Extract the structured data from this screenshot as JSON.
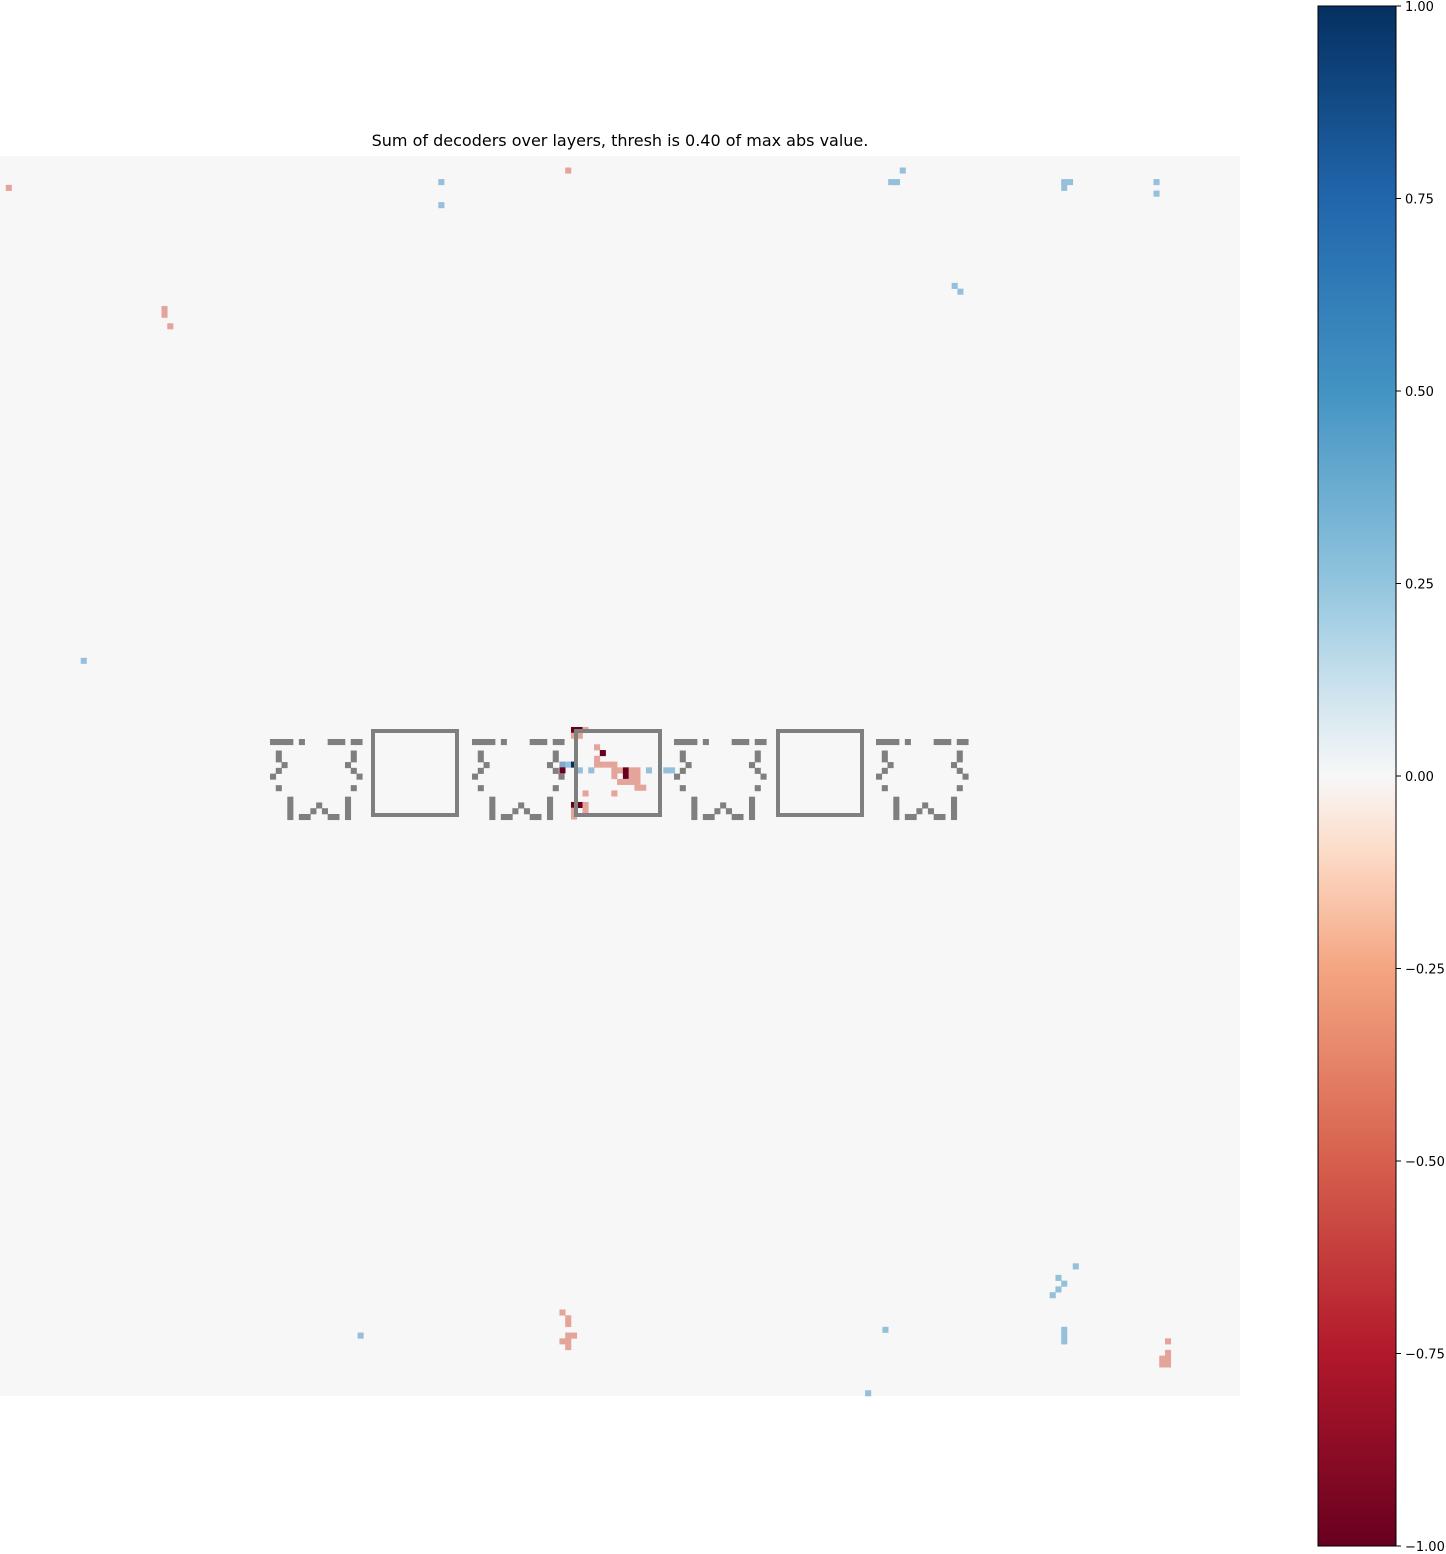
{
  "chart_data": {
    "type": "heatmap",
    "title": "Sum of decoders over layers, thresh is 0.40 of max abs value.",
    "grid": false,
    "colormap": "RdBu",
    "background_color": "#f7f7f7",
    "overlay_color": "#7f7f7f",
    "colorbar": {
      "position": "right",
      "vmin": -1.0,
      "vmax": 1.0,
      "ticks": [
        1.0,
        0.75,
        0.5,
        0.25,
        0.0,
        -0.25,
        -0.5,
        -0.75,
        -1.0
      ],
      "tick_labels": [
        "1.00",
        "0.75",
        "0.50",
        "0.25",
        "0.00",
        "−0.25",
        "−0.50",
        "−0.75",
        "−1.00"
      ],
      "stops": [
        {
          "value": -1.0,
          "color": "#67001f"
        },
        {
          "value": -0.75,
          "color": "#b2182b"
        },
        {
          "value": -0.5,
          "color": "#d6604d"
        },
        {
          "value": -0.25,
          "color": "#f4a582"
        },
        {
          "value": -0.1,
          "color": "#fddbc7"
        },
        {
          "value": 0.0,
          "color": "#f7f7f7"
        },
        {
          "value": 0.1,
          "color": "#d1e5f0"
        },
        {
          "value": 0.25,
          "color": "#92c5de"
        },
        {
          "value": 0.5,
          "color": "#4393c3"
        },
        {
          "value": 0.75,
          "color": "#2166ac"
        },
        {
          "value": 1.0,
          "color": "#053061"
        }
      ]
    },
    "grid_size": [
      215,
      215
    ],
    "cells": [
      {
        "col": 1,
        "row": 5,
        "value": -0.5
      },
      {
        "col": 76,
        "row": 4,
        "value": 0.5
      },
      {
        "col": 76,
        "row": 8,
        "value": 0.5
      },
      {
        "col": 98,
        "row": 2,
        "value": -0.5
      },
      {
        "col": 155,
        "row": 4,
        "value": 0.5
      },
      {
        "col": 154,
        "row": 4,
        "value": 0.5
      },
      {
        "col": 156,
        "row": 2,
        "value": 0.5
      },
      {
        "col": 184,
        "row": 4,
        "value": 0.5
      },
      {
        "col": 185,
        "row": 4,
        "value": 0.5
      },
      {
        "col": 184,
        "row": 5,
        "value": 0.5
      },
      {
        "col": 200,
        "row": 4,
        "value": 0.5
      },
      {
        "col": 200,
        "row": 6,
        "value": 0.5
      },
      {
        "col": 28,
        "row": 26,
        "value": -0.5
      },
      {
        "col": 28,
        "row": 27,
        "value": -0.5
      },
      {
        "col": 29,
        "row": 29,
        "value": -0.5
      },
      {
        "col": 165,
        "row": 22,
        "value": 0.5
      },
      {
        "col": 166,
        "row": 23,
        "value": 0.5
      },
      {
        "col": 14,
        "row": 87,
        "value": 0.5
      },
      {
        "col": 99,
        "row": 99,
        "value": -1.0
      },
      {
        "col": 100,
        "row": 99,
        "value": -1.0
      },
      {
        "col": 101,
        "row": 99,
        "value": -0.5
      },
      {
        "col": 99,
        "row": 100,
        "value": -0.5
      },
      {
        "col": 100,
        "row": 100,
        "value": -0.5
      },
      {
        "col": 103,
        "row": 102,
        "value": -0.5
      },
      {
        "col": 104,
        "row": 103,
        "value": -1.0
      },
      {
        "col": 103,
        "row": 104,
        "value": -0.5
      },
      {
        "col": 103,
        "row": 105,
        "value": -0.5
      },
      {
        "col": 104,
        "row": 105,
        "value": -0.5
      },
      {
        "col": 105,
        "row": 105,
        "value": -0.5
      },
      {
        "col": 106,
        "row": 105,
        "value": -0.5
      },
      {
        "col": 106,
        "row": 106,
        "value": -0.5
      },
      {
        "col": 107,
        "row": 106,
        "value": -0.5
      },
      {
        "col": 108,
        "row": 106,
        "value": -1.0
      },
      {
        "col": 106,
        "row": 107,
        "value": -0.5
      },
      {
        "col": 108,
        "row": 107,
        "value": -1.0
      },
      {
        "col": 109,
        "row": 106,
        "value": -0.5
      },
      {
        "col": 110,
        "row": 106,
        "value": -0.5
      },
      {
        "col": 109,
        "row": 107,
        "value": -0.5
      },
      {
        "col": 110,
        "row": 107,
        "value": -0.5
      },
      {
        "col": 107,
        "row": 108,
        "value": -0.5
      },
      {
        "col": 108,
        "row": 108,
        "value": -0.5
      },
      {
        "col": 109,
        "row": 108,
        "value": -0.5
      },
      {
        "col": 110,
        "row": 108,
        "value": -0.5
      },
      {
        "col": 110,
        "row": 109,
        "value": -0.5
      },
      {
        "col": 111,
        "row": 109,
        "value": -0.5
      },
      {
        "col": 97,
        "row": 105,
        "value": 0.75
      },
      {
        "col": 98,
        "row": 105,
        "value": 0.5
      },
      {
        "col": 99,
        "row": 105,
        "value": 1.0
      },
      {
        "col": 100,
        "row": 106,
        "value": 0.5
      },
      {
        "col": 102,
        "row": 106,
        "value": 0.5
      },
      {
        "col": 112,
        "row": 106,
        "value": 0.5
      },
      {
        "col": 115,
        "row": 106,
        "value": 0.5
      },
      {
        "col": 116,
        "row": 106,
        "value": 0.5
      },
      {
        "col": 97,
        "row": 106,
        "value": -1.0
      },
      {
        "col": 101,
        "row": 110,
        "value": -0.5
      },
      {
        "col": 106,
        "row": 110,
        "value": -0.5
      },
      {
        "col": 99,
        "row": 112,
        "value": -1.0
      },
      {
        "col": 100,
        "row": 112,
        "value": -1.0
      },
      {
        "col": 101,
        "row": 112,
        "value": -0.5
      },
      {
        "col": 99,
        "row": 113,
        "value": -0.5
      },
      {
        "col": 101,
        "row": 113,
        "value": -0.5
      },
      {
        "col": 99,
        "row": 114,
        "value": -0.5
      },
      {
        "col": 186,
        "row": 192,
        "value": 0.5
      },
      {
        "col": 183,
        "row": 194,
        "value": 0.5
      },
      {
        "col": 184,
        "row": 195,
        "value": 0.5
      },
      {
        "col": 183,
        "row": 196,
        "value": 0.5
      },
      {
        "col": 182,
        "row": 197,
        "value": 0.5
      },
      {
        "col": 97,
        "row": 200,
        "value": -0.5
      },
      {
        "col": 98,
        "row": 201,
        "value": -0.5
      },
      {
        "col": 98,
        "row": 202,
        "value": -0.5
      },
      {
        "col": 98,
        "row": 204,
        "value": -0.5
      },
      {
        "col": 99,
        "row": 204,
        "value": -0.5
      },
      {
        "col": 98,
        "row": 205,
        "value": -0.5
      },
      {
        "col": 97,
        "row": 205,
        "value": -0.5
      },
      {
        "col": 98,
        "row": 206,
        "value": -0.5
      },
      {
        "col": 62,
        "row": 204,
        "value": 0.5
      },
      {
        "col": 153,
        "row": 203,
        "value": 0.5
      },
      {
        "col": 184,
        "row": 203,
        "value": 0.5
      },
      {
        "col": 184,
        "row": 204,
        "value": 0.5
      },
      {
        "col": 184,
        "row": 205,
        "value": 0.5
      },
      {
        "col": 150,
        "row": 214,
        "value": 0.5
      },
      {
        "col": 202,
        "row": 205,
        "value": -0.5
      },
      {
        "col": 202,
        "row": 207,
        "value": -0.5
      },
      {
        "col": 202,
        "row": 208,
        "value": -0.5
      },
      {
        "col": 201,
        "row": 208,
        "value": -0.5
      },
      {
        "col": 201,
        "row": 209,
        "value": -0.5
      },
      {
        "col": 202,
        "row": 209,
        "value": -0.5
      }
    ]
  }
}
